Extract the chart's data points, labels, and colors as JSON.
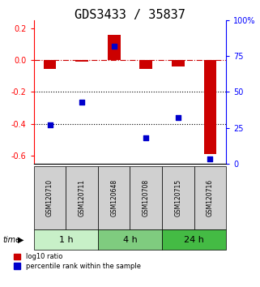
{
  "title": "GDS3433 / 35837",
  "samples": [
    "GSM120710",
    "GSM120711",
    "GSM120648",
    "GSM120708",
    "GSM120715",
    "GSM120716"
  ],
  "log10_ratio": [
    -0.055,
    -0.01,
    0.155,
    -0.055,
    -0.04,
    -0.59
  ],
  "percentile_rank": [
    27,
    43,
    82,
    18,
    32,
    3
  ],
  "time_groups": [
    {
      "label": "1 h",
      "samples": [
        0,
        1
      ],
      "color": "#c8f0c8"
    },
    {
      "label": "4 h",
      "samples": [
        2,
        3
      ],
      "color": "#7fcc7f"
    },
    {
      "label": "24 h",
      "samples": [
        4,
        5
      ],
      "color": "#44bb44"
    }
  ],
  "bar_color": "#cc0000",
  "dot_color": "#0000cc",
  "ylim_left": [
    -0.65,
    0.25
  ],
  "ylim_right": [
    0,
    100
  ],
  "yticks_left": [
    0.2,
    0.0,
    -0.2,
    -0.4,
    -0.6
  ],
  "yticks_right": [
    100,
    75,
    50,
    25,
    0
  ],
  "dotted_lines": [
    -0.2,
    -0.4
  ],
  "background_color": "#ffffff",
  "sample_box_color": "#d0d0d0",
  "title_fontsize": 11,
  "bar_width": 0.4
}
